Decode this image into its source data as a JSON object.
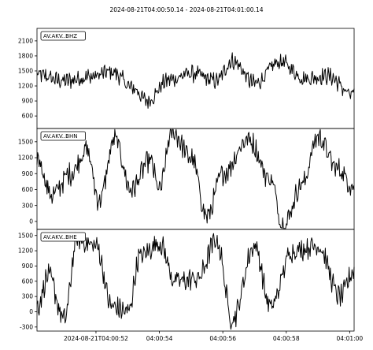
{
  "chart_data": {
    "type": "line",
    "title": "2024-08-21T04:00:50.14  -  2024-08-21T04:01:00.14",
    "x_range": [
      "2024-08-21T04:00:50.14",
      "2024-08-21T04:01:00.14"
    ],
    "x_ticks": [
      {
        "time": "2024-08-21T04:00:52",
        "label": "2024-08-21T04:00:52"
      },
      {
        "time": "2024-08-21T04:00:54",
        "label": "04:00:54"
      },
      {
        "time": "2024-08-21T04:00:56",
        "label": "04:00:56"
      },
      {
        "time": "2024-08-21T04:00:58",
        "label": "04:00:58"
      },
      {
        "time": "2024-08-21T04:01:00",
        "label": "04:01:00"
      }
    ],
    "grid": false,
    "line_color": "#000000",
    "panels": [
      {
        "label": "AV.AKV..BHZ",
        "ylim": [
          350,
          2350
        ],
        "yticks": [
          600,
          900,
          1200,
          1500,
          1800,
          2100
        ],
        "series": [
          {
            "t": "2024-08-21T04:00:50.14",
            "v": 1420
          },
          {
            "t": "2024-08-21T04:00:51.0",
            "v": 1300
          },
          {
            "t": "2024-08-21T04:00:51.8",
            "v": 1380
          },
          {
            "t": "2024-08-21T04:00:52.5",
            "v": 1480
          },
          {
            "t": "2024-08-21T04:00:53.2",
            "v": 1150
          },
          {
            "t": "2024-08-21T04:00:53.6",
            "v": 900
          },
          {
            "t": "2024-08-21T04:00:54.3",
            "v": 1320
          },
          {
            "t": "2024-08-21T04:00:55.0",
            "v": 1450
          },
          {
            "t": "2024-08-21T04:00:55.8",
            "v": 1300
          },
          {
            "t": "2024-08-21T04:00:56.3",
            "v": 1700
          },
          {
            "t": "2024-08-21T04:00:57.0",
            "v": 1250
          },
          {
            "t": "2024-08-21T04:00:57.8",
            "v": 1680
          },
          {
            "t": "2024-08-21T04:00:58.6",
            "v": 1350
          },
          {
            "t": "2024-08-21T04:00:59.3",
            "v": 1400
          },
          {
            "t": "2024-08-21T04:01:00.14",
            "v": 1000
          }
        ]
      },
      {
        "label": "AV.AKV..BHN",
        "ylim": [
          -150,
          1750
        ],
        "yticks": [
          0,
          300,
          600,
          900,
          1200,
          1500
        ],
        "series": [
          {
            "t": "2024-08-21T04:00:50.14",
            "v": 1200
          },
          {
            "t": "2024-08-21T04:00:50.6",
            "v": 500
          },
          {
            "t": "2024-08-21T04:00:51.2",
            "v": 900
          },
          {
            "t": "2024-08-21T04:00:51.7",
            "v": 1350
          },
          {
            "t": "2024-08-21T04:00:52.1",
            "v": 400
          },
          {
            "t": "2024-08-21T04:00:52.6",
            "v": 1550
          },
          {
            "t": "2024-08-21T04:00:53.1",
            "v": 600
          },
          {
            "t": "2024-08-21T04:00:53.7",
            "v": 1150
          },
          {
            "t": "2024-08-21T04:00:54.0",
            "v": 600
          },
          {
            "t": "2024-08-21T04:00:54.4",
            "v": 1700
          },
          {
            "t": "2024-08-21T04:00:55.0",
            "v": 1200
          },
          {
            "t": "2024-08-21T04:00:55.5",
            "v": 100
          },
          {
            "t": "2024-08-21T04:00:56.0",
            "v": 900
          },
          {
            "t": "2024-08-21T04:00:56.8",
            "v": 1550
          },
          {
            "t": "2024-08-21T04:00:57.5",
            "v": 800
          },
          {
            "t": "2024-08-21T04:00:57.9",
            "v": -80
          },
          {
            "t": "2024-08-21T04:00:58.5",
            "v": 700
          },
          {
            "t": "2024-08-21T04:00:59.0",
            "v": 1600
          },
          {
            "t": "2024-08-21T04:00:59.6",
            "v": 1000
          },
          {
            "t": "2024-08-21T04:01:00.14",
            "v": 650
          }
        ]
      },
      {
        "label": "AV.AKV..BHE",
        "ylim": [
          -380,
          1620
        ],
        "yticks": [
          -300,
          0,
          300,
          600,
          900,
          1200,
          1500
        ],
        "series": [
          {
            "t": "2024-08-21T04:00:50.14",
            "v": 100
          },
          {
            "t": "2024-08-21T04:00:50.5",
            "v": 700
          },
          {
            "t": "2024-08-21T04:00:51.0",
            "v": -150
          },
          {
            "t": "2024-08-21T04:00:51.4",
            "v": 1400
          },
          {
            "t": "2024-08-21T04:00:52.0",
            "v": 1300
          },
          {
            "t": "2024-08-21T04:00:52.5",
            "v": 100
          },
          {
            "t": "2024-08-21T04:00:53.0",
            "v": 0
          },
          {
            "t": "2024-08-21T04:00:53.4",
            "v": 1100
          },
          {
            "t": "2024-08-21T04:00:54.0",
            "v": 1350
          },
          {
            "t": "2024-08-21T04:00:54.5",
            "v": 600
          },
          {
            "t": "2024-08-21T04:00:55.2",
            "v": 650
          },
          {
            "t": "2024-08-21T04:00:55.8",
            "v": 1400
          },
          {
            "t": "2024-08-21T04:00:56.3",
            "v": -150
          },
          {
            "t": "2024-08-21T04:00:57.0",
            "v": 1300
          },
          {
            "t": "2024-08-21T04:00:57.5",
            "v": 100
          },
          {
            "t": "2024-08-21T04:00:58.2",
            "v": 1200
          },
          {
            "t": "2024-08-21T04:00:59.0",
            "v": 1300
          },
          {
            "t": "2024-08-21T04:00:59.7",
            "v": 300
          },
          {
            "t": "2024-08-21T04:01:00.14",
            "v": 800
          }
        ]
      }
    ]
  }
}
